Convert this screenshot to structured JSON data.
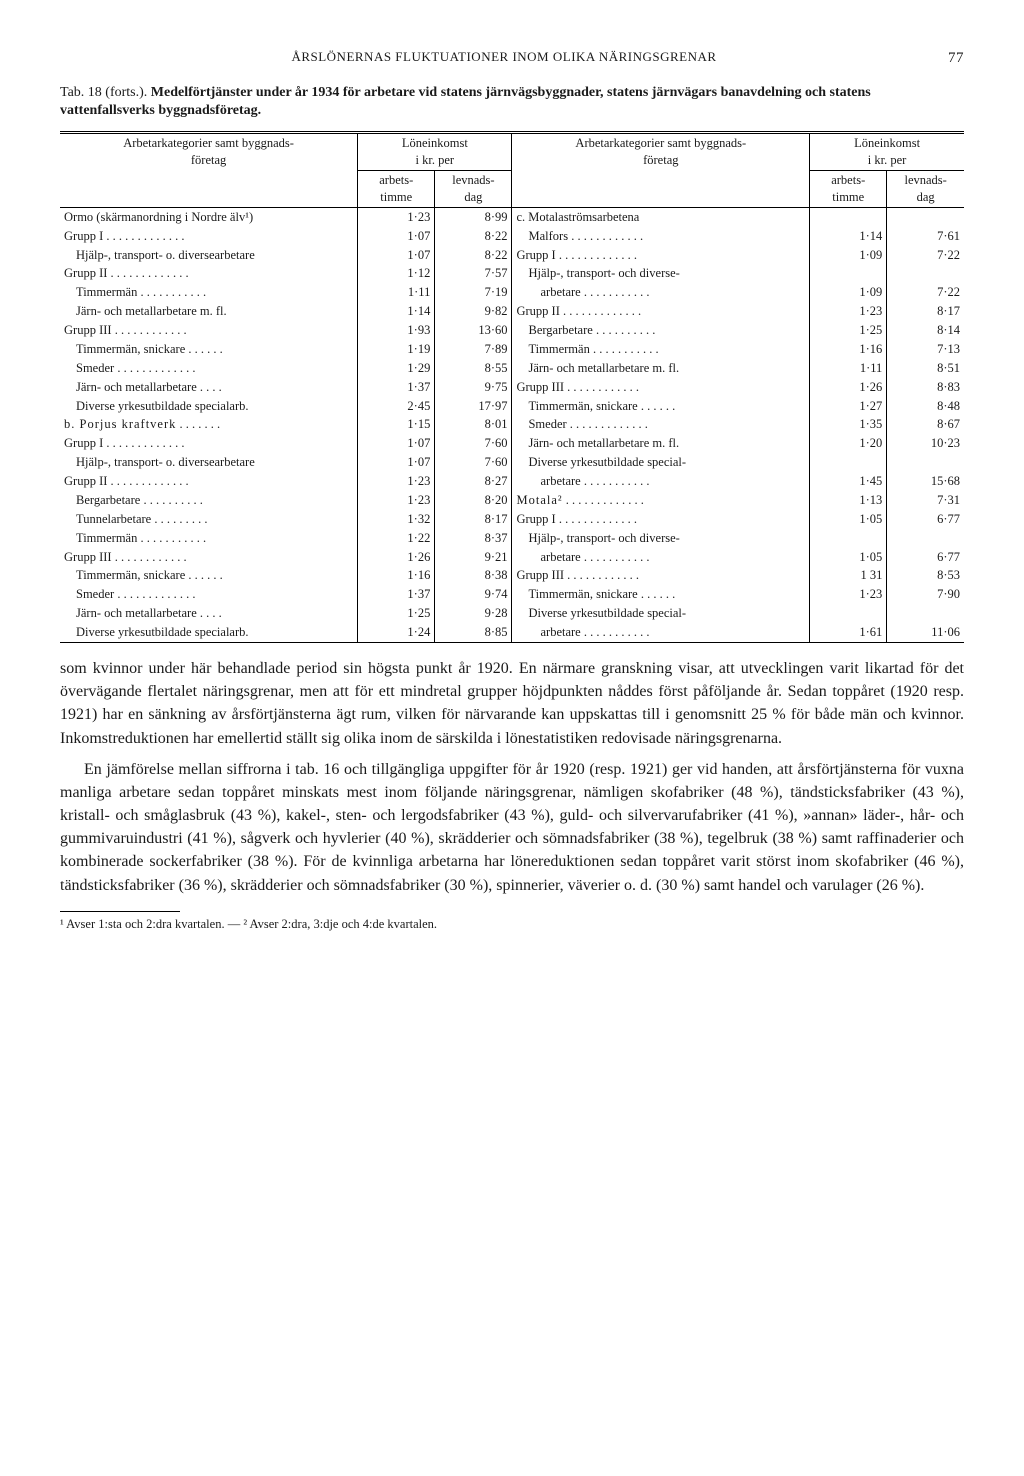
{
  "page": {
    "running_head": "ÅRSLÖNERNAS FLUKTUATIONER INOM OLIKA NÄRINGSGRENAR",
    "page_number": "77"
  },
  "caption": {
    "prefix": "Tab. 18 (forts.).",
    "title": "Medelförtjänster under år 1934 för arbetare vid statens järnvägsbyggnader, statens järnvägars banavdelning och statens vattenfallsverks byggnadsföretag."
  },
  "table": {
    "head": {
      "col_group": "Arbetarkategorier samt byggnads-\nföretag",
      "income_group": "Löneinkomst\ni kr. per",
      "sub1": "arbets-\ntimme",
      "sub2": "levnads-\ndag"
    },
    "left": [
      {
        "label": "Ormo (skärmanordning i Nordre älv¹)",
        "v1": "1·23",
        "v2": "8·99",
        "indent": 0
      },
      {
        "label": "Grupp I",
        "v1": "1·07",
        "v2": "8·22",
        "indent": 0,
        "dots": true
      },
      {
        "label": "Hjälp-, transport- o. diversearbetare",
        "v1": "1·07",
        "v2": "8·22",
        "indent": 1
      },
      {
        "label": "Grupp II",
        "v1": "1·12",
        "v2": "7·57",
        "indent": 0,
        "dots": true
      },
      {
        "label": "Timmermän",
        "v1": "1·11",
        "v2": "7·19",
        "indent": 1,
        "dots": true
      },
      {
        "label": "Järn- och metallarbetare m. fl.",
        "v1": "1·14",
        "v2": "9·82",
        "indent": 1
      },
      {
        "label": "Grupp III",
        "v1": "1·93",
        "v2": "13·60",
        "indent": 0,
        "dots": true
      },
      {
        "label": "Timmermän, snickare",
        "v1": "1·19",
        "v2": "7·89",
        "indent": 1,
        "dots": true
      },
      {
        "label": "Smeder",
        "v1": "1·29",
        "v2": "8·55",
        "indent": 1,
        "dots": true
      },
      {
        "label": "Järn- och metallarbetare",
        "v1": "1·37",
        "v2": "9·75",
        "indent": 1,
        "dots": true
      },
      {
        "label": "Diverse yrkesutbildade specialarb.",
        "v1": "2·45",
        "v2": "17·97",
        "indent": 1
      },
      {
        "label": "b. Porjus kraftverk",
        "v1": "1·15",
        "v2": "8·01",
        "indent": 0,
        "dots": true,
        "spaced": true
      },
      {
        "label": "Grupp I",
        "v1": "1·07",
        "v2": "7·60",
        "indent": 0,
        "dots": true
      },
      {
        "label": "Hjälp-, transport- o. diversearbetare",
        "v1": "1·07",
        "v2": "7·60",
        "indent": 1
      },
      {
        "label": "Grupp II",
        "v1": "1·23",
        "v2": "8·27",
        "indent": 0,
        "dots": true
      },
      {
        "label": "Bergarbetare",
        "v1": "1·23",
        "v2": "8·20",
        "indent": 1,
        "dots": true
      },
      {
        "label": "Tunnelarbetare",
        "v1": "1·32",
        "v2": "8·17",
        "indent": 1,
        "dots": true
      },
      {
        "label": "Timmermän",
        "v1": "1·22",
        "v2": "8·37",
        "indent": 1,
        "dots": true
      },
      {
        "label": "Grupp III",
        "v1": "1·26",
        "v2": "9·21",
        "indent": 0,
        "dots": true
      },
      {
        "label": "Timmermän, snickare",
        "v1": "1·16",
        "v2": "8·38",
        "indent": 1,
        "dots": true
      },
      {
        "label": "Smeder",
        "v1": "1·37",
        "v2": "9·74",
        "indent": 1,
        "dots": true
      },
      {
        "label": "Järn- och metallarbetare",
        "v1": "1·25",
        "v2": "9·28",
        "indent": 1,
        "dots": true
      },
      {
        "label": "Diverse yrkesutbildade specialarb.",
        "v1": "1·24",
        "v2": "8·85",
        "indent": 1
      }
    ],
    "right": [
      {
        "label": "c. Motalaströmsarbetena",
        "v1": "",
        "v2": "",
        "indent": 0
      },
      {
        "label": "Malfors",
        "v1": "1·14",
        "v2": "7·61",
        "indent": 1,
        "dots": true
      },
      {
        "label": "Grupp I",
        "v1": "1·09",
        "v2": "7·22",
        "indent": 0,
        "dots": true
      },
      {
        "label": "Hjälp-, transport- och diverse-",
        "v1": "",
        "v2": "",
        "indent": 1
      },
      {
        "label": "arbetare",
        "v1": "1·09",
        "v2": "7·22",
        "indent": 2,
        "dots": true
      },
      {
        "label": "Grupp II",
        "v1": "1·23",
        "v2": "8·17",
        "indent": 0,
        "dots": true
      },
      {
        "label": "Bergarbetare",
        "v1": "1·25",
        "v2": "8·14",
        "indent": 1,
        "dots": true
      },
      {
        "label": "Timmermän",
        "v1": "1·16",
        "v2": "7·13",
        "indent": 1,
        "dots": true
      },
      {
        "label": "Järn- och metallarbetare m. fl.",
        "v1": "1·11",
        "v2": "8·51",
        "indent": 1
      },
      {
        "label": "Grupp III",
        "v1": "1·26",
        "v2": "8·83",
        "indent": 0,
        "dots": true
      },
      {
        "label": "Timmermän, snickare",
        "v1": "1·27",
        "v2": "8·48",
        "indent": 1,
        "dots": true
      },
      {
        "label": "Smeder",
        "v1": "1·35",
        "v2": "8·67",
        "indent": 1,
        "dots": true
      },
      {
        "label": "Järn- och metallarbetare m. fl.",
        "v1": "1·20",
        "v2": "10·23",
        "indent": 1
      },
      {
        "label": "Diverse yrkesutbildade special-",
        "v1": "",
        "v2": "",
        "indent": 1
      },
      {
        "label": "arbetare",
        "v1": "1·45",
        "v2": "15·68",
        "indent": 2,
        "dots": true
      },
      {
        "label": "Motala²",
        "v1": "1·13",
        "v2": "7·31",
        "indent": 0,
        "dots": true,
        "spaced": true
      },
      {
        "label": "Grupp I",
        "v1": "1·05",
        "v2": "6·77",
        "indent": 0,
        "dots": true
      },
      {
        "label": "Hjälp-, transport- och diverse-",
        "v1": "",
        "v2": "",
        "indent": 1
      },
      {
        "label": "arbetare",
        "v1": "1·05",
        "v2": "6·77",
        "indent": 2,
        "dots": true
      },
      {
        "label": "Grupp III",
        "v1": "1 31",
        "v2": "8·53",
        "indent": 0,
        "dots": true
      },
      {
        "label": "Timmermän, snickare",
        "v1": "1·23",
        "v2": "7·90",
        "indent": 1,
        "dots": true
      },
      {
        "label": "Diverse yrkesutbildade special-",
        "v1": "",
        "v2": "",
        "indent": 1
      },
      {
        "label": "arbetare",
        "v1": "1·61",
        "v2": "11·06",
        "indent": 2,
        "dots": true
      }
    ]
  },
  "paragraphs": [
    "som kvinnor under här behandlade period sin högsta punkt år 1920. En närmare granskning visar, att utvecklingen varit likartad för det övervägande flertalet näringsgrenar, men att för ett mindretal grupper höjdpunkten nåddes först påföljande år. Sedan toppåret (1920 resp. 1921) har en sänkning av årsförtjänsterna ägt rum, vilken för närvarande kan uppskattas till i genomsnitt 25 % för både män och kvinnor. Inkomstreduktionen har emellertid ställt sig olika inom de särskilda i lönestatistiken redovisade näringsgrenarna.",
    "En jämförelse mellan siffrorna i tab. 16 och tillgängliga uppgifter för år 1920 (resp. 1921) ger vid handen, att årsförtjänsterna för vuxna manliga arbetare sedan toppåret minskats mest inom följande näringsgrenar, nämligen skofabriker (48 %), tändsticksfabriker (43 %), kristall- och småglasbruk (43 %), kakel-, sten- och lergodsfabriker (43 %), guld- och silvervarufabriker (41 %), »annan» läder-, hår- och gummivaruindustri (41 %), sågverk och hyvlerier (40 %), skrädderier och sömnadsfabriker (38 %), tegelbruk (38 %) samt raffinaderier och kombinerade sockerfabriker (38 %). För de kvinnliga arbetarna har lönereduktionen sedan toppåret varit störst inom skofabriker (46 %), tändsticksfabriker (36 %), skrädderier och sömnadsfabriker (30 %), spinnerier, väverier o. d. (30 %) samt handel och varulager (26 %)."
  ],
  "footnote": "¹ Avser 1:sta och 2:dra kvartalen. — ² Avser 2:dra, 3:dje och 4:de kvartalen."
}
